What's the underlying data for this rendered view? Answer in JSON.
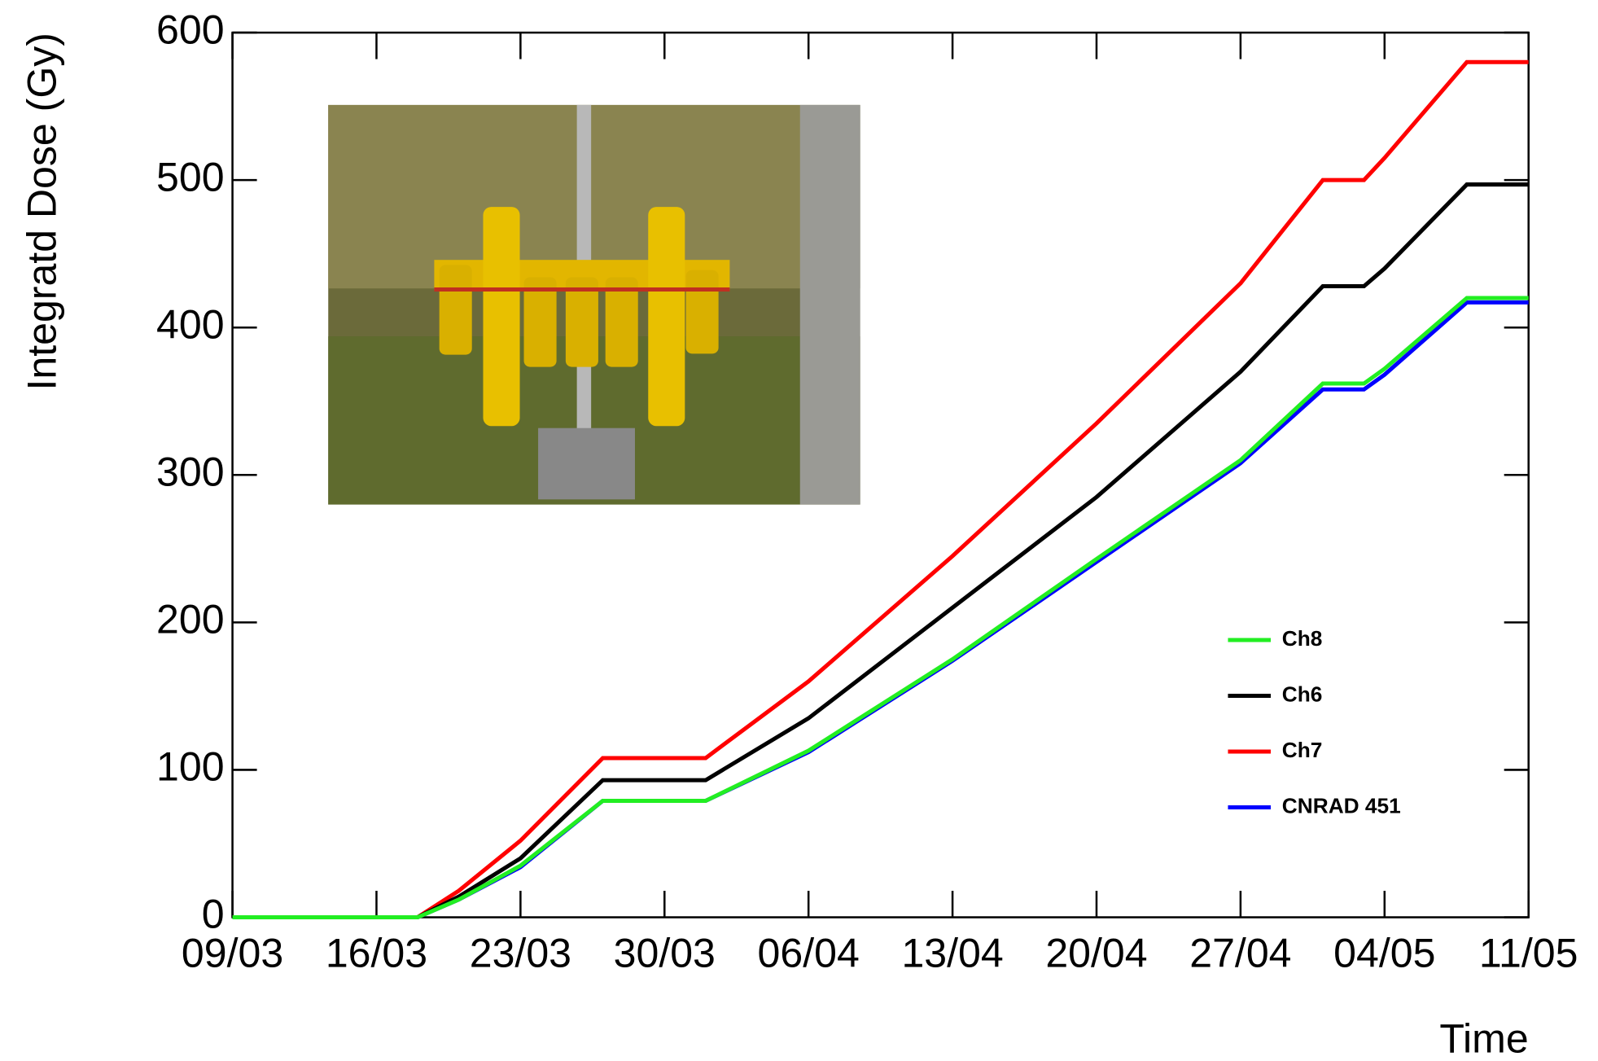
{
  "chart_data": {
    "type": "line",
    "xlabel": "Time",
    "ylabel": "Integratd Dose (Gy)",
    "x": [
      "09/03",
      "16/03",
      "18/03",
      "20/03",
      "23/03",
      "27/03",
      "01/04",
      "06/04",
      "13/04",
      "20/04",
      "27/04",
      "01/05",
      "03/05",
      "04/05",
      "08/05",
      "11/05"
    ],
    "series": [
      {
        "name": "Ch8",
        "color": "#22ee22",
        "values": [
          0,
          0,
          0,
          12,
          35,
          79,
          79,
          113,
          175,
          243,
          310,
          362,
          362,
          372,
          420,
          420
        ]
      },
      {
        "name": "Ch6",
        "color": "#000000",
        "values": [
          0,
          0,
          0,
          14,
          40,
          93,
          93,
          135,
          210,
          285,
          370,
          428,
          428,
          440,
          497,
          497
        ]
      },
      {
        "name": "Ch7",
        "color": "#ff0000",
        "values": [
          0,
          0,
          0,
          18,
          52,
          108,
          108,
          160,
          245,
          335,
          430,
          500,
          500,
          515,
          580,
          580
        ]
      },
      {
        "name": "CNRAD 451",
        "color": "#0000ff",
        "values": [
          null,
          0,
          0,
          12,
          34,
          79,
          79,
          112,
          174,
          241,
          308,
          358,
          358,
          368,
          417,
          417
        ]
      }
    ],
    "xlim": [
      "09/03",
      "11/05"
    ],
    "xticks": [
      "09/03",
      "16/03",
      "23/03",
      "30/03",
      "06/04",
      "13/04",
      "20/04",
      "27/04",
      "04/05",
      "11/05"
    ],
    "ylim": [
      0,
      600
    ],
    "yticks": [
      0,
      100,
      200,
      300,
      400,
      500,
      600
    ]
  }
}
